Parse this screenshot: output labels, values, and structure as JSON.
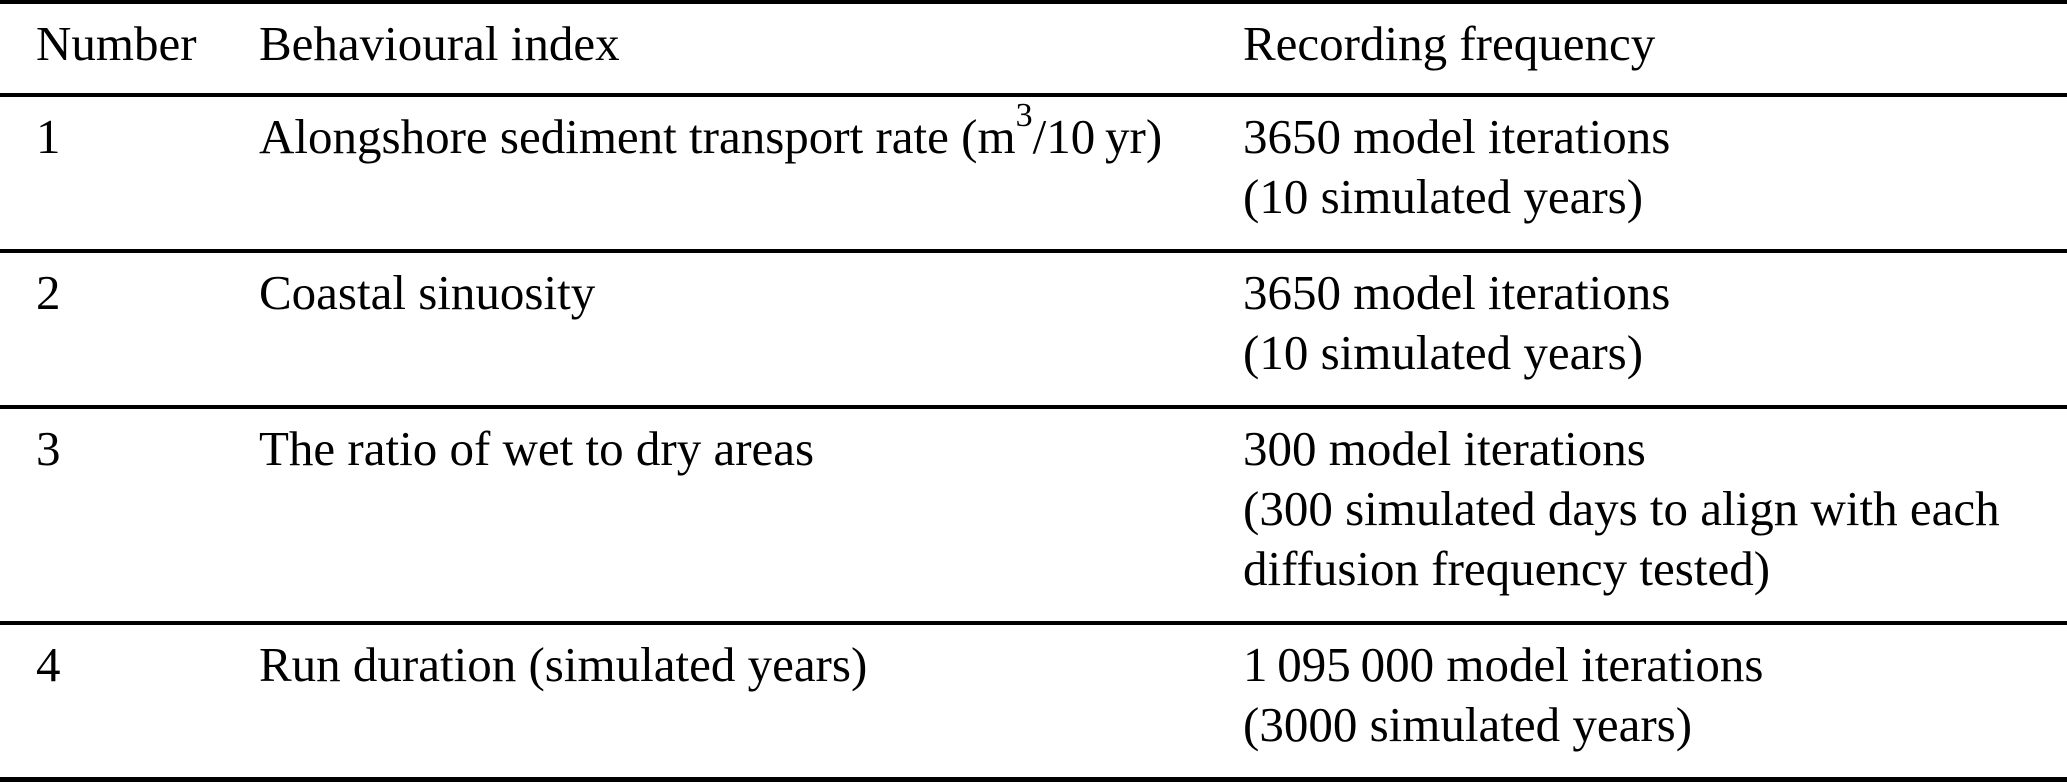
{
  "table": {
    "columns": [
      "Number",
      "Behavioural index",
      "Recording frequency"
    ],
    "rows": [
      {
        "number": "1",
        "index": {
          "pre": "Alongshore sediment transport rate (m",
          "sup": "3",
          "post": "/10 yr)"
        },
        "frequency": [
          "3650 model iterations",
          "(10 simulated years)"
        ]
      },
      {
        "number": "2",
        "index": "Coastal sinuosity",
        "frequency": [
          "3650 model iterations",
          "(10 simulated years)"
        ]
      },
      {
        "number": "3",
        "index": "The ratio of wet to dry areas",
        "frequency": [
          "300 model iterations",
          "(300 simulated days to align with each",
          "diffusion frequency tested)"
        ]
      },
      {
        "number": "4",
        "index": "Run duration (simulated years)",
        "frequency": [
          "1 095 000 model iterations",
          "(3000 simulated years)"
        ]
      }
    ]
  },
  "colors": {
    "text": "#000000",
    "rule": "#000000",
    "page_background": "#ffffff"
  }
}
